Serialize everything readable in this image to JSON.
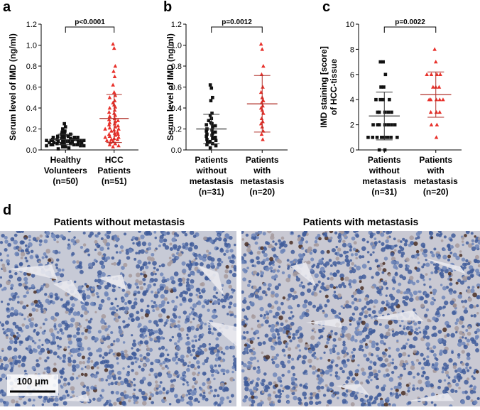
{
  "chart_data": [
    {
      "type": "dotplot",
      "panel": "a",
      "ylabel": [
        "Serum level of IMD (ng/ml)"
      ],
      "categories": [
        "Healthy\nVolunteers\n(n=50)",
        "HCC\nPatients\n(n=51)"
      ],
      "ylim": [
        0,
        1.2
      ],
      "yticks": [
        {
          "value": 0,
          "label": "0.0"
        },
        0.2,
        0.4,
        0.6,
        0.8,
        {
          "value": 1,
          "label": "1.0"
        },
        1.2
      ],
      "significance": "p<0.0001",
      "groups": [
        {
          "color": "#111111",
          "marker": "square",
          "mean": 0.1,
          "sd": 0.05,
          "values": [
            0.25,
            0.22,
            0.2,
            0.18,
            0.17,
            0.16,
            0.15,
            0.15,
            0.14,
            0.14,
            0.13,
            0.13,
            0.12,
            0.12,
            0.12,
            0.11,
            0.11,
            0.11,
            0.1,
            0.1,
            0.1,
            0.1,
            0.09,
            0.09,
            0.09,
            0.09,
            0.08,
            0.08,
            0.08,
            0.08,
            0.08,
            0.07,
            0.07,
            0.07,
            0.07,
            0.06,
            0.06,
            0.06,
            0.06,
            0.05,
            0.05,
            0.05,
            0.05,
            0.04,
            0.04,
            0.04,
            0.03,
            0.03,
            0.02,
            0.01
          ]
        },
        {
          "color": "#e8302a",
          "marker": "triangle",
          "mean": 0.3,
          "sd": 0.23,
          "values": [
            1.01,
            0.97,
            0.8,
            0.75,
            0.7,
            0.62,
            0.55,
            0.52,
            0.5,
            0.47,
            0.45,
            0.43,
            0.41,
            0.4,
            0.38,
            0.36,
            0.35,
            0.33,
            0.32,
            0.3,
            0.29,
            0.28,
            0.27,
            0.26,
            0.25,
            0.24,
            0.23,
            0.22,
            0.21,
            0.2,
            0.2,
            0.19,
            0.18,
            0.17,
            0.16,
            0.15,
            0.15,
            0.14,
            0.13,
            0.12,
            0.12,
            0.11,
            0.1,
            0.1,
            0.09,
            0.08,
            0.07,
            0.06,
            0.05,
            0.04,
            0.03
          ]
        }
      ]
    },
    {
      "type": "dotplot",
      "panel": "b",
      "ylabel": [
        "Serum level of IMD (ng/ml)"
      ],
      "categories": [
        "Patients\nwithout\nmetastasis\n(n=31)",
        "Patients\nwith\nmetastasis\n(n=20)"
      ],
      "ylim": [
        0,
        1.2
      ],
      "yticks": [
        {
          "value": 0,
          "label": "0.0"
        },
        0.2,
        0.4,
        0.6,
        0.8,
        {
          "value": 1,
          "label": "1.0"
        },
        1.2
      ],
      "significance": "p=0.0012",
      "groups": [
        {
          "color": "#111111",
          "marker": "square",
          "mean": 0.2,
          "sd": 0.14,
          "values": [
            0.62,
            0.59,
            0.5,
            0.47,
            0.35,
            0.33,
            0.3,
            0.28,
            0.26,
            0.25,
            0.24,
            0.23,
            0.22,
            0.2,
            0.19,
            0.18,
            0.17,
            0.16,
            0.15,
            0.14,
            0.13,
            0.12,
            0.11,
            0.1,
            0.09,
            0.08,
            0.07,
            0.06,
            0.05,
            0.04,
            0.02
          ]
        },
        {
          "color": "#e8302a",
          "marker": "triangle",
          "mean": 0.44,
          "sd": 0.27,
          "values": [
            1.01,
            0.96,
            0.8,
            0.72,
            0.6,
            0.55,
            0.5,
            0.47,
            0.45,
            0.42,
            0.4,
            0.38,
            0.35,
            0.3,
            0.27,
            0.25,
            0.22,
            0.18,
            0.15,
            0.1
          ]
        }
      ]
    },
    {
      "type": "dotplot",
      "panel": "c",
      "ylabel": [
        "IMD staining [score]",
        "of HCC-tissue"
      ],
      "categories": [
        "Patients\nwithout\nmetastasis\n(n=31)",
        "Patients\nwith\nmetastasis\n(n=20)"
      ],
      "ylim": [
        0,
        10
      ],
      "yticks": [
        0,
        2,
        4,
        6,
        8,
        10
      ],
      "significance": "p=0.0022",
      "groups": [
        {
          "color": "#111111",
          "marker": "square",
          "mean": 2.7,
          "sd": 1.9,
          "values": [
            7,
            7,
            6,
            5,
            5,
            4,
            4,
            4,
            4,
            3,
            3,
            3,
            3,
            3,
            2,
            2,
            2,
            2,
            2,
            2,
            2,
            1,
            1,
            1,
            1,
            1,
            1,
            1,
            1,
            0,
            0
          ]
        },
        {
          "color": "#e8302a",
          "marker": "triangle",
          "mean": 4.4,
          "sd": 1.8,
          "values": [
            8,
            7,
            6,
            6,
            6,
            6,
            5,
            5,
            5,
            4,
            4,
            4,
            4,
            4,
            3,
            3,
            3,
            2,
            2,
            1
          ]
        }
      ]
    }
  ],
  "figure_d": {
    "label": "d",
    "panels": [
      {
        "title": "Patients without metastasis"
      },
      {
        "title": "Patients with metastasis"
      }
    ],
    "scale_bar": "100 μm"
  }
}
